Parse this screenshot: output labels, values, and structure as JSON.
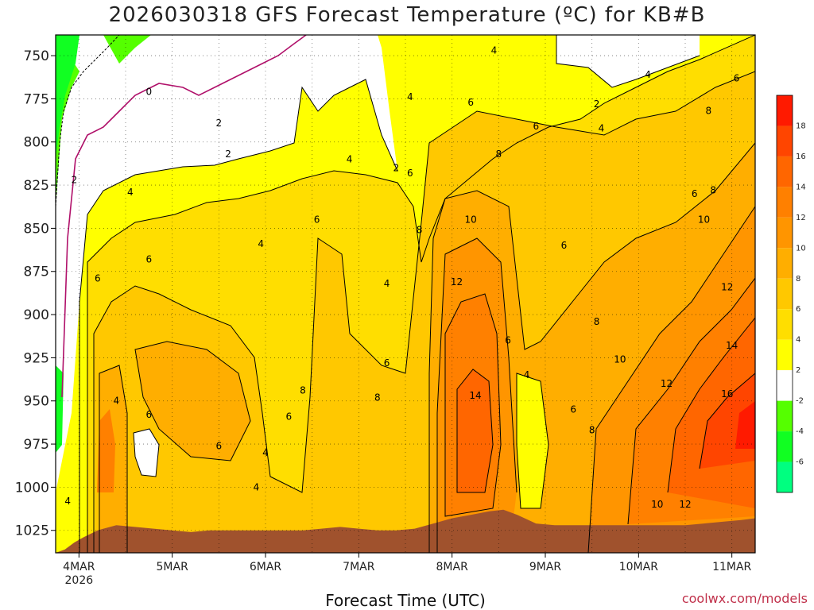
{
  "header": {
    "title": "2026030318 GFS Forecast Temperature (ºC) for KB#B"
  },
  "footer": {
    "xlabel": "Forecast Time (UTC)",
    "credit": "coolwx.com/models"
  },
  "chart_data": {
    "type": "heatmap",
    "title": "2026030318 GFS Forecast Temperature (ºC) for KB#B",
    "xlabel": "Forecast Time (UTC)",
    "ylabel": "",
    "x_ticks": [
      "4MAR\n2026",
      "5MAR",
      "6MAR",
      "7MAR",
      "8MAR",
      "9MAR",
      "10MAR",
      "11MAR"
    ],
    "x_range_days": [
      3.75,
      11.25
    ],
    "y_ticks": [
      750,
      775,
      800,
      825,
      850,
      875,
      900,
      925,
      950,
      975,
      1000,
      1025
    ],
    "y_range_hpa": [
      738,
      1038
    ],
    "grid": true,
    "colorbar": {
      "placement": "right",
      "labels": [
        "18",
        "16",
        "14",
        "12",
        "10",
        "8",
        "6",
        "4",
        "2",
        "-2",
        "-4",
        "-6"
      ],
      "bins": [
        {
          "from": 18,
          "to": 20,
          "color": "#ff1a00"
        },
        {
          "from": 16,
          "to": 18,
          "color": "#ff4500"
        },
        {
          "from": 14,
          "to": 16,
          "color": "#ff6600"
        },
        {
          "from": 12,
          "to": 14,
          "color": "#ff8000"
        },
        {
          "from": 10,
          "to": 12,
          "color": "#ff9500"
        },
        {
          "from": 8,
          "to": 10,
          "color": "#ffae00"
        },
        {
          "from": 6,
          "to": 8,
          "color": "#ffc800"
        },
        {
          "from": 4,
          "to": 6,
          "color": "#ffde00"
        },
        {
          "from": 2,
          "to": 4,
          "color": "#ffff00"
        },
        {
          "from": -2,
          "to": 2,
          "color": "#ffffff"
        },
        {
          "from": -4,
          "to": -2,
          "color": "#55ff00"
        },
        {
          "from": -6,
          "to": -4,
          "color": "#11ff22"
        },
        {
          "from": -8,
          "to": -6,
          "color": "#00ff80"
        }
      ]
    },
    "contour_labels": [
      {
        "text": "0",
        "day": 4.75,
        "p": 771
      },
      {
        "text": "2",
        "day": 3.95,
        "p": 822
      },
      {
        "text": "2",
        "day": 5.6,
        "p": 807
      },
      {
        "text": "2",
        "day": 5.5,
        "p": 789
      },
      {
        "text": "2",
        "day": 7.4,
        "p": 815
      },
      {
        "text": "2",
        "day": 9.55,
        "p": 778
      },
      {
        "text": "4",
        "day": 4.55,
        "p": 829
      },
      {
        "text": "4",
        "day": 5.95,
        "p": 859
      },
      {
        "text": "4",
        "day": 6.9,
        "p": 810
      },
      {
        "text": "4",
        "day": 7.3,
        "p": 882
      },
      {
        "text": "4",
        "day": 7.55,
        "p": 774
      },
      {
        "text": "4",
        "day": 8.45,
        "p": 747
      },
      {
        "text": "4",
        "day": 9.6,
        "p": 792
      },
      {
        "text": "4",
        "day": 10.1,
        "p": 761
      },
      {
        "text": "4",
        "day": 8.8,
        "p": 935
      },
      {
        "text": "4",
        "day": 4.4,
        "p": 950
      },
      {
        "text": "4",
        "day": 6.0,
        "p": 980
      },
      {
        "text": "4",
        "day": 5.9,
        "p": 1000
      },
      {
        "text": "4",
        "day": 3.88,
        "p": 1008
      },
      {
        "text": "6",
        "day": 4.2,
        "p": 879
      },
      {
        "text": "6",
        "day": 4.75,
        "p": 868
      },
      {
        "text": "6",
        "day": 6.55,
        "p": 845
      },
      {
        "text": "6",
        "day": 7.55,
        "p": 818
      },
      {
        "text": "6",
        "day": 8.2,
        "p": 777
      },
      {
        "text": "6",
        "day": 8.9,
        "p": 791
      },
      {
        "text": "6",
        "day": 10.6,
        "p": 830
      },
      {
        "text": "6",
        "day": 11.05,
        "p": 763
      },
      {
        "text": "6",
        "day": 9.2,
        "p": 860
      },
      {
        "text": "6",
        "day": 8.6,
        "p": 915
      },
      {
        "text": "6",
        "day": 7.3,
        "p": 928
      },
      {
        "text": "6",
        "day": 6.25,
        "p": 959
      },
      {
        "text": "6",
        "day": 5.5,
        "p": 976
      },
      {
        "text": "6",
        "day": 9.3,
        "p": 955
      },
      {
        "text": "6",
        "day": 4.75,
        "p": 958
      },
      {
        "text": "8",
        "day": 7.65,
        "p": 851
      },
      {
        "text": "8",
        "day": 8.5,
        "p": 807
      },
      {
        "text": "8",
        "day": 10.8,
        "p": 828
      },
      {
        "text": "8",
        "day": 10.75,
        "p": 782
      },
      {
        "text": "8",
        "day": 9.55,
        "p": 904
      },
      {
        "text": "8",
        "day": 9.5,
        "p": 967
      },
      {
        "text": "8",
        "day": 7.2,
        "p": 948
      },
      {
        "text": "8",
        "day": 6.4,
        "p": 944
      },
      {
        "text": "10",
        "day": 8.2,
        "p": 845
      },
      {
        "text": "10",
        "day": 10.7,
        "p": 845
      },
      {
        "text": "10",
        "day": 9.8,
        "p": 926
      },
      {
        "text": "10",
        "day": 10.2,
        "p": 1010
      },
      {
        "text": "12",
        "day": 8.05,
        "p": 881
      },
      {
        "text": "12",
        "day": 10.95,
        "p": 884
      },
      {
        "text": "12",
        "day": 10.3,
        "p": 940
      },
      {
        "text": "12",
        "day": 10.5,
        "p": 1010
      },
      {
        "text": "14",
        "day": 8.25,
        "p": 947
      },
      {
        "text": "14",
        "day": 11.0,
        "p": 918
      },
      {
        "text": "16",
        "day": 10.95,
        "p": 946
      }
    ],
    "topography": [
      {
        "day": 3.75,
        "p": 1038
      },
      {
        "day": 3.85,
        "p": 1036
      },
      {
        "day": 3.95,
        "p": 1032
      },
      {
        "day": 4.05,
        "p": 1029
      },
      {
        "day": 4.2,
        "p": 1025
      },
      {
        "day": 4.4,
        "p": 1022
      },
      {
        "day": 4.6,
        "p": 1023
      },
      {
        "day": 4.8,
        "p": 1024
      },
      {
        "day": 5.0,
        "p": 1025
      },
      {
        "day": 5.2,
        "p": 1026
      },
      {
        "day": 5.4,
        "p": 1025
      },
      {
        "day": 5.6,
        "p": 1025
      },
      {
        "day": 5.8,
        "p": 1025
      },
      {
        "day": 6.0,
        "p": 1025
      },
      {
        "day": 6.2,
        "p": 1025
      },
      {
        "day": 6.4,
        "p": 1025
      },
      {
        "day": 6.6,
        "p": 1024
      },
      {
        "day": 6.8,
        "p": 1023
      },
      {
        "day": 7.0,
        "p": 1024
      },
      {
        "day": 7.2,
        "p": 1025
      },
      {
        "day": 7.4,
        "p": 1025
      },
      {
        "day": 7.6,
        "p": 1024
      },
      {
        "day": 7.8,
        "p": 1021
      },
      {
        "day": 8.0,
        "p": 1018
      },
      {
        "day": 8.2,
        "p": 1016
      },
      {
        "day": 8.4,
        "p": 1014
      },
      {
        "day": 8.55,
        "p": 1013
      },
      {
        "day": 8.7,
        "p": 1016
      },
      {
        "day": 8.9,
        "p": 1021
      },
      {
        "day": 9.1,
        "p": 1022
      },
      {
        "day": 9.3,
        "p": 1022
      },
      {
        "day": 9.5,
        "p": 1022
      },
      {
        "day": 9.7,
        "p": 1022
      },
      {
        "day": 9.9,
        "p": 1022
      },
      {
        "day": 10.1,
        "p": 1022
      },
      {
        "day": 10.3,
        "p": 1022
      },
      {
        "day": 10.5,
        "p": 1022
      },
      {
        "day": 10.7,
        "p": 1021
      },
      {
        "day": 10.9,
        "p": 1020
      },
      {
        "day": 11.1,
        "p": 1019
      },
      {
        "day": 11.25,
        "p": 1018
      }
    ]
  }
}
